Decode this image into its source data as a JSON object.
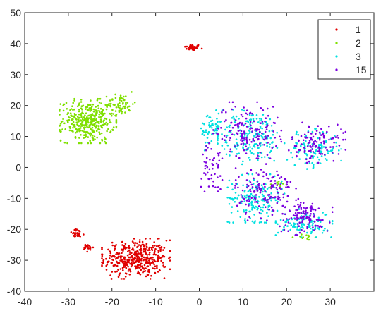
{
  "chart_data": {
    "type": "scatter",
    "title": "",
    "xlabel": "",
    "ylabel": "",
    "xlim": [
      -40,
      40
    ],
    "ylim": [
      -40,
      50
    ],
    "xticks": [
      "-40",
      "-30",
      "-20",
      "-10",
      "0",
      "10",
      "20",
      "30"
    ],
    "yticks": [
      "-40",
      "-30",
      "-20",
      "-10",
      "0",
      "10",
      "20",
      "30",
      "40",
      "50"
    ],
    "grid": false,
    "legend_position": "top-right",
    "series": [
      {
        "name": "1",
        "color": "#e00000",
        "clusters": [
          {
            "cx": -1.5,
            "cy": 38.8,
            "sx": 1.6,
            "sy": 0.9,
            "n": 40
          },
          {
            "cx": -14.5,
            "cy": -29.5,
            "sx": 6.0,
            "sy": 5.0,
            "n": 420
          },
          {
            "cx": -28.0,
            "cy": -21.5,
            "sx": 1.4,
            "sy": 1.2,
            "n": 30
          },
          {
            "cx": -25.5,
            "cy": -26.0,
            "sx": 1.0,
            "sy": 1.2,
            "n": 20
          }
        ]
      },
      {
        "name": "2",
        "color": "#7fe000",
        "clusters": [
          {
            "cx": -25.5,
            "cy": 15.0,
            "sx": 5.0,
            "sy": 5.5,
            "n": 380
          },
          {
            "cx": -18.0,
            "cy": 20.5,
            "sx": 2.5,
            "sy": 3.0,
            "n": 60
          },
          {
            "cx": 18.0,
            "cy": -5.5,
            "sx": 1.5,
            "sy": 1.0,
            "n": 12
          },
          {
            "cx": 24.0,
            "cy": -22.5,
            "sx": 2.0,
            "sy": 0.8,
            "n": 12
          }
        ]
      },
      {
        "name": "3",
        "color": "#00e0e0",
        "clusters": [
          {
            "cx": 12.0,
            "cy": 10.0,
            "sx": 6.0,
            "sy": 7.0,
            "n": 180
          },
          {
            "cx": 13.0,
            "cy": -10.0,
            "sx": 5.0,
            "sy": 6.0,
            "n": 170
          },
          {
            "cx": 26.0,
            "cy": 6.0,
            "sx": 5.0,
            "sy": 5.0,
            "n": 120
          },
          {
            "cx": 24.0,
            "cy": -18.0,
            "sx": 5.0,
            "sy": 3.5,
            "n": 100
          },
          {
            "cx": 3.0,
            "cy": 12.0,
            "sx": 2.5,
            "sy": 5.0,
            "n": 60
          }
        ]
      },
      {
        "name": "15",
        "color": "#7b00e0",
        "clusters": [
          {
            "cx": 11.0,
            "cy": 12.0,
            "sx": 6.0,
            "sy": 7.0,
            "n": 150
          },
          {
            "cx": 15.0,
            "cy": -8.0,
            "sx": 5.5,
            "sy": 7.0,
            "n": 150
          },
          {
            "cx": 27.0,
            "cy": 8.0,
            "sx": 5.0,
            "sy": 5.0,
            "n": 110
          },
          {
            "cx": 24.0,
            "cy": -16.0,
            "sx": 5.0,
            "sy": 4.5,
            "n": 110
          },
          {
            "cx": 3.0,
            "cy": 0.0,
            "sx": 2.0,
            "sy": 6.0,
            "n": 50
          }
        ]
      }
    ]
  }
}
